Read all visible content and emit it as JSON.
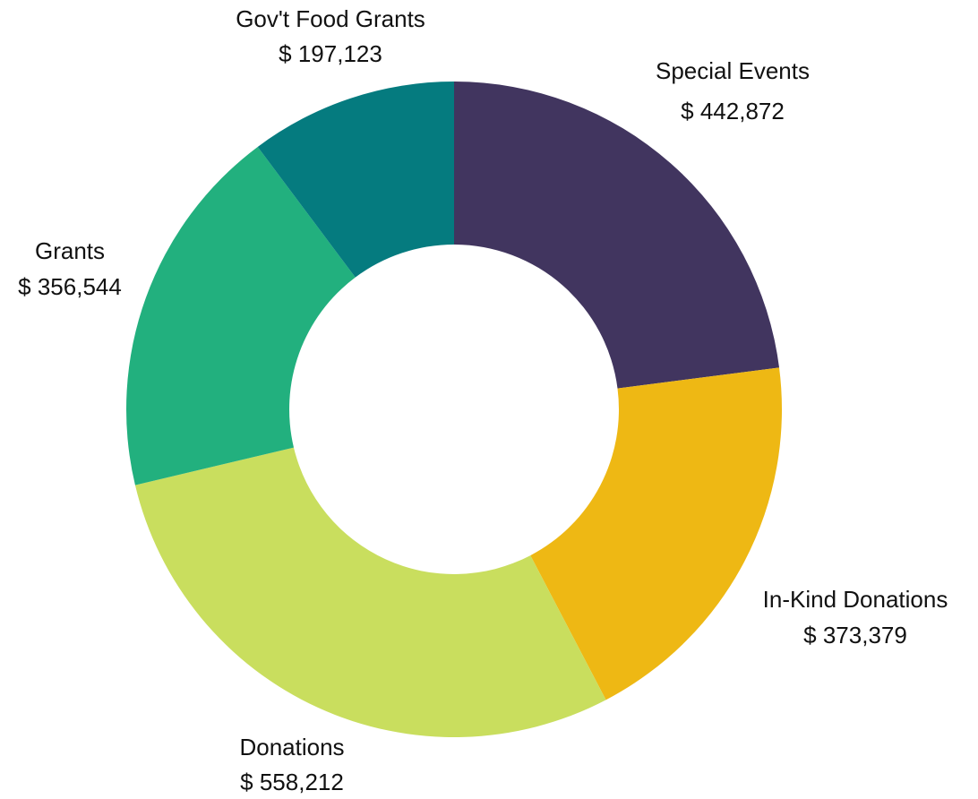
{
  "chart_data": {
    "type": "pie",
    "variant": "donut",
    "legend": "none",
    "slices": [
      {
        "name": "Special Events",
        "value": 442872,
        "value_label": "$ 442,872",
        "color": "#41355F"
      },
      {
        "name": "In-Kind Donations",
        "value": 373379,
        "value_label": "$ 373,379",
        "color": "#EEB814"
      },
      {
        "name": "Donations",
        "value": 558212,
        "value_label": "$ 558,212",
        "color": "#C9DE5E"
      },
      {
        "name": "Grants",
        "value": 356544,
        "value_label": "$ 356,544",
        "color": "#22B07E"
      },
      {
        "name": "Gov't Food Grants",
        "value": 197123,
        "value_label": "$ 197,123",
        "color": "#057B7F"
      }
    ]
  }
}
